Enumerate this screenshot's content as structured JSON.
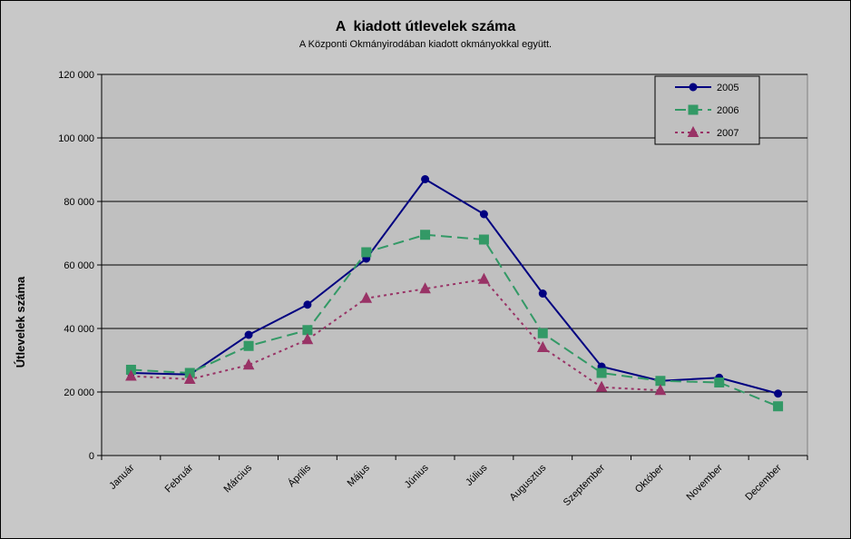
{
  "chart_data": {
    "type": "line",
    "title": "A  kiadott útlevelek száma",
    "subtitle": "A Központi Okmányirodában kiadott okmányokkal együtt.",
    "xlabel": "",
    "ylabel": "Útlevelek száma",
    "categories": [
      "Január",
      "Február",
      "Március",
      "Április",
      "Május",
      "Június",
      "Július",
      "Augusztus",
      "Szeptember",
      "Október",
      "November",
      "December"
    ],
    "ylim": [
      0,
      120000
    ],
    "yticks": [
      0,
      20000,
      40000,
      60000,
      80000,
      100000,
      120000
    ],
    "ytick_labels": [
      "0",
      "20 000",
      "40 000",
      "60 000",
      "80 000",
      "100 000",
      "120 000"
    ],
    "grid": true,
    "legend_position": "top-right",
    "series": [
      {
        "name": "2005",
        "color": "#000080",
        "marker": "circle",
        "line_style": "solid",
        "values": [
          26000,
          25500,
          38000,
          47500,
          62000,
          87000,
          76000,
          51000,
          28000,
          23500,
          24500,
          19500
        ]
      },
      {
        "name": "2006",
        "color": "#339966",
        "marker": "square",
        "line_style": "dashed",
        "values": [
          27000,
          26000,
          34500,
          39500,
          64000,
          69500,
          68000,
          38500,
          26000,
          23500,
          23000,
          15500
        ]
      },
      {
        "name": "2007",
        "color": "#993366",
        "marker": "triangle",
        "line_style": "dotted",
        "values": [
          25000,
          24000,
          28500,
          36500,
          49500,
          52500,
          55500,
          34000,
          21500,
          20500,
          null,
          null
        ]
      }
    ]
  },
  "colors": {
    "frame_background": "#c8c8c8",
    "plot_background": "#c0c0c0",
    "grid": "#000000"
  }
}
